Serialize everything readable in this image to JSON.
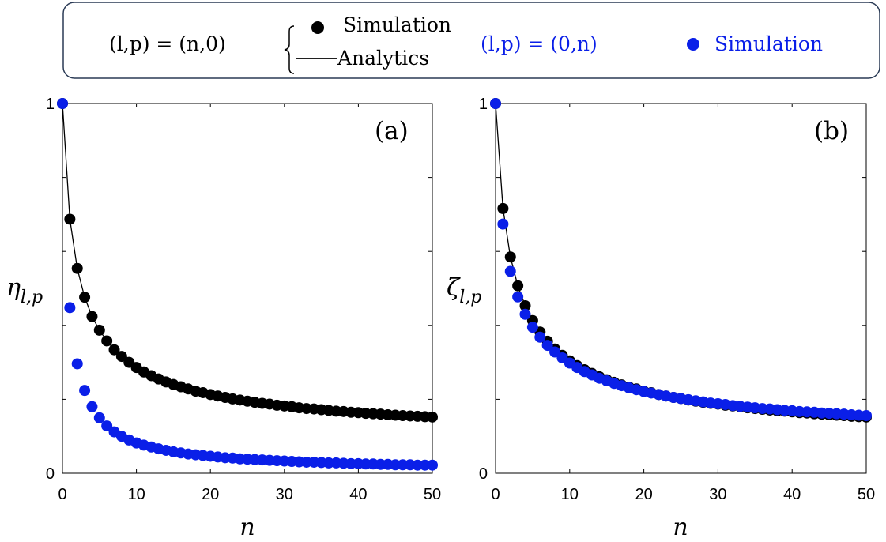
{
  "legend": {
    "group1_label": "(l,p) = (n,0)",
    "group1_sim_label": "Simulation",
    "group1_ana_label": "Analytics",
    "group2_label": "(l,p) = (0,n)",
    "group2_sim_label": "Simulation"
  },
  "colors": {
    "series_1": "#000000",
    "series_2": "#0a1fe8",
    "frame": "#000000",
    "legend_border": "#2a3a55"
  },
  "chart_data": [
    {
      "type": "scatter",
      "panel_label": "(a)",
      "xlabel": "n",
      "ylabel": "η_{l,p}",
      "xlim": [
        0,
        50
      ],
      "ylim": [
        0,
        1
      ],
      "xticks": [
        0,
        10,
        20,
        30,
        40,
        50
      ],
      "yticks": [
        0,
        1
      ],
      "grid": false,
      "series": [
        {
          "name": "(l,p)=(n,0) Simulation",
          "color": "#000000",
          "marker": "circle",
          "x": [
            0,
            1,
            2,
            3,
            4,
            5,
            6,
            7,
            8,
            9,
            10,
            11,
            12,
            13,
            14,
            15,
            16,
            17,
            18,
            19,
            20,
            21,
            22,
            23,
            24,
            25,
            26,
            27,
            28,
            29,
            30,
            31,
            32,
            33,
            34,
            35,
            36,
            37,
            38,
            39,
            40,
            41,
            42,
            43,
            44,
            45,
            46,
            47,
            48,
            49,
            50
          ],
          "y": [
            1,
            0.687,
            0.554,
            0.476,
            0.424,
            0.387,
            0.358,
            0.334,
            0.316,
            0.3,
            0.286,
            0.274,
            0.264,
            0.255,
            0.247,
            0.24,
            0.234,
            0.228,
            0.222,
            0.218,
            0.213,
            0.209,
            0.205,
            0.201,
            0.198,
            0.195,
            0.192,
            0.189,
            0.187,
            0.184,
            0.182,
            0.18,
            0.177,
            0.175,
            0.174,
            0.172,
            0.17,
            0.168,
            0.167,
            0.165,
            0.164,
            0.162,
            0.161,
            0.16,
            0.158,
            0.157,
            0.156,
            0.155,
            0.154,
            0.153,
            0.152
          ]
        },
        {
          "name": "(l,p)=(n,0) Analytics",
          "color": "#000000",
          "marker": "line",
          "x": [
            0,
            1,
            2,
            3,
            4,
            5,
            6,
            7,
            8,
            9,
            10,
            11,
            12,
            13,
            14,
            15,
            16,
            17,
            18,
            19,
            20,
            21,
            22,
            23,
            24,
            25,
            26,
            27,
            28,
            29,
            30,
            31,
            32,
            33,
            34,
            35,
            36,
            37,
            38,
            39,
            40,
            41,
            42,
            43,
            44,
            45,
            46,
            47,
            48,
            49,
            50
          ],
          "y": [
            1,
            0.687,
            0.554,
            0.476,
            0.424,
            0.387,
            0.358,
            0.334,
            0.316,
            0.3,
            0.286,
            0.274,
            0.264,
            0.255,
            0.247,
            0.24,
            0.234,
            0.228,
            0.222,
            0.218,
            0.213,
            0.209,
            0.205,
            0.201,
            0.198,
            0.195,
            0.192,
            0.189,
            0.187,
            0.184,
            0.182,
            0.18,
            0.177,
            0.175,
            0.174,
            0.172,
            0.17,
            0.168,
            0.167,
            0.165,
            0.164,
            0.162,
            0.161,
            0.16,
            0.158,
            0.157,
            0.156,
            0.155,
            0.154,
            0.153,
            0.152
          ]
        },
        {
          "name": "(l,p)=(0,n) Simulation",
          "color": "#0a1fe8",
          "marker": "circle",
          "x": [
            0,
            1,
            2,
            3,
            4,
            5,
            6,
            7,
            8,
            9,
            10,
            11,
            12,
            13,
            14,
            15,
            16,
            17,
            18,
            19,
            20,
            21,
            22,
            23,
            24,
            25,
            26,
            27,
            28,
            29,
            30,
            31,
            32,
            33,
            34,
            35,
            36,
            37,
            38,
            39,
            40,
            41,
            42,
            43,
            44,
            45,
            46,
            47,
            48,
            49,
            50
          ],
          "y": [
            1,
            0.448,
            0.296,
            0.224,
            0.18,
            0.15,
            0.128,
            0.112,
            0.1,
            0.09,
            0.082,
            0.076,
            0.071,
            0.066,
            0.062,
            0.058,
            0.055,
            0.052,
            0.05,
            0.048,
            0.046,
            0.044,
            0.042,
            0.041,
            0.039,
            0.038,
            0.037,
            0.036,
            0.035,
            0.034,
            0.033,
            0.032,
            0.031,
            0.03,
            0.03,
            0.029,
            0.028,
            0.028,
            0.027,
            0.026,
            0.026,
            0.025,
            0.025,
            0.024,
            0.024,
            0.023,
            0.023,
            0.023,
            0.022,
            0.022,
            0.022
          ]
        }
      ]
    },
    {
      "type": "scatter",
      "panel_label": "(b)",
      "xlabel": "n",
      "ylabel": "ζ_{l,p}",
      "xlim": [
        0,
        50
      ],
      "ylim": [
        0,
        1
      ],
      "xticks": [
        0,
        10,
        20,
        30,
        40,
        50
      ],
      "yticks": [
        0,
        1
      ],
      "grid": false,
      "series": [
        {
          "name": "(l,p)=(n,0) Simulation",
          "color": "#000000",
          "marker": "circle",
          "x": [
            0,
            1,
            2,
            3,
            4,
            5,
            6,
            7,
            8,
            9,
            10,
            11,
            12,
            13,
            14,
            15,
            16,
            17,
            18,
            19,
            20,
            21,
            22,
            23,
            24,
            25,
            26,
            27,
            28,
            29,
            30,
            31,
            32,
            33,
            34,
            35,
            36,
            37,
            38,
            39,
            40,
            41,
            42,
            43,
            44,
            45,
            46,
            47,
            48,
            49,
            50
          ],
          "y": [
            1,
            0.716,
            0.585,
            0.507,
            0.453,
            0.413,
            0.382,
            0.357,
            0.336,
            0.319,
            0.304,
            0.291,
            0.28,
            0.27,
            0.261,
            0.253,
            0.246,
            0.239,
            0.233,
            0.228,
            0.222,
            0.218,
            0.213,
            0.209,
            0.205,
            0.202,
            0.198,
            0.195,
            0.192,
            0.189,
            0.187,
            0.184,
            0.182,
            0.18,
            0.177,
            0.175,
            0.173,
            0.171,
            0.169,
            0.168,
            0.166,
            0.164,
            0.163,
            0.161,
            0.16,
            0.158,
            0.157,
            0.156,
            0.154,
            0.153,
            0.152
          ]
        },
        {
          "name": "(l,p)=(n,0) Analytics",
          "color": "#000000",
          "marker": "line",
          "x": [
            0,
            1,
            2,
            3,
            4,
            5,
            6,
            7,
            8,
            9,
            10,
            11,
            12,
            13,
            14,
            15,
            16,
            17,
            18,
            19,
            20,
            21,
            22,
            23,
            24,
            25,
            26,
            27,
            28,
            29,
            30,
            31,
            32,
            33,
            34,
            35,
            36,
            37,
            38,
            39,
            40,
            41,
            42,
            43,
            44,
            45,
            46,
            47,
            48,
            49,
            50
          ],
          "y": [
            1,
            0.716,
            0.585,
            0.507,
            0.453,
            0.413,
            0.382,
            0.357,
            0.336,
            0.319,
            0.304,
            0.291,
            0.28,
            0.27,
            0.261,
            0.253,
            0.246,
            0.239,
            0.233,
            0.228,
            0.222,
            0.218,
            0.213,
            0.209,
            0.205,
            0.202,
            0.198,
            0.195,
            0.192,
            0.189,
            0.187,
            0.184,
            0.182,
            0.18,
            0.177,
            0.175,
            0.173,
            0.171,
            0.169,
            0.168,
            0.166,
            0.164,
            0.163,
            0.161,
            0.16,
            0.158,
            0.157,
            0.156,
            0.154,
            0.153,
            0.152
          ]
        },
        {
          "name": "(l,p)=(0,n) Simulation",
          "color": "#0a1fe8",
          "marker": "circle",
          "x": [
            0,
            1,
            2,
            3,
            4,
            5,
            6,
            7,
            8,
            9,
            10,
            11,
            12,
            13,
            14,
            15,
            16,
            17,
            18,
            19,
            20,
            21,
            22,
            23,
            24,
            25,
            26,
            27,
            28,
            29,
            30,
            31,
            32,
            33,
            34,
            35,
            36,
            37,
            38,
            39,
            40,
            41,
            42,
            43,
            44,
            45,
            46,
            47,
            48,
            49,
            50
          ],
          "y": [
            1,
            0.674,
            0.546,
            0.477,
            0.43,
            0.395,
            0.368,
            0.346,
            0.328,
            0.312,
            0.298,
            0.286,
            0.275,
            0.266,
            0.257,
            0.25,
            0.243,
            0.237,
            0.231,
            0.226,
            0.221,
            0.217,
            0.213,
            0.209,
            0.205,
            0.202,
            0.199,
            0.196,
            0.193,
            0.19,
            0.188,
            0.186,
            0.183,
            0.181,
            0.179,
            0.177,
            0.175,
            0.174,
            0.172,
            0.17,
            0.169,
            0.167,
            0.166,
            0.165,
            0.163,
            0.162,
            0.161,
            0.16,
            0.158,
            0.157,
            0.156
          ]
        }
      ]
    }
  ]
}
